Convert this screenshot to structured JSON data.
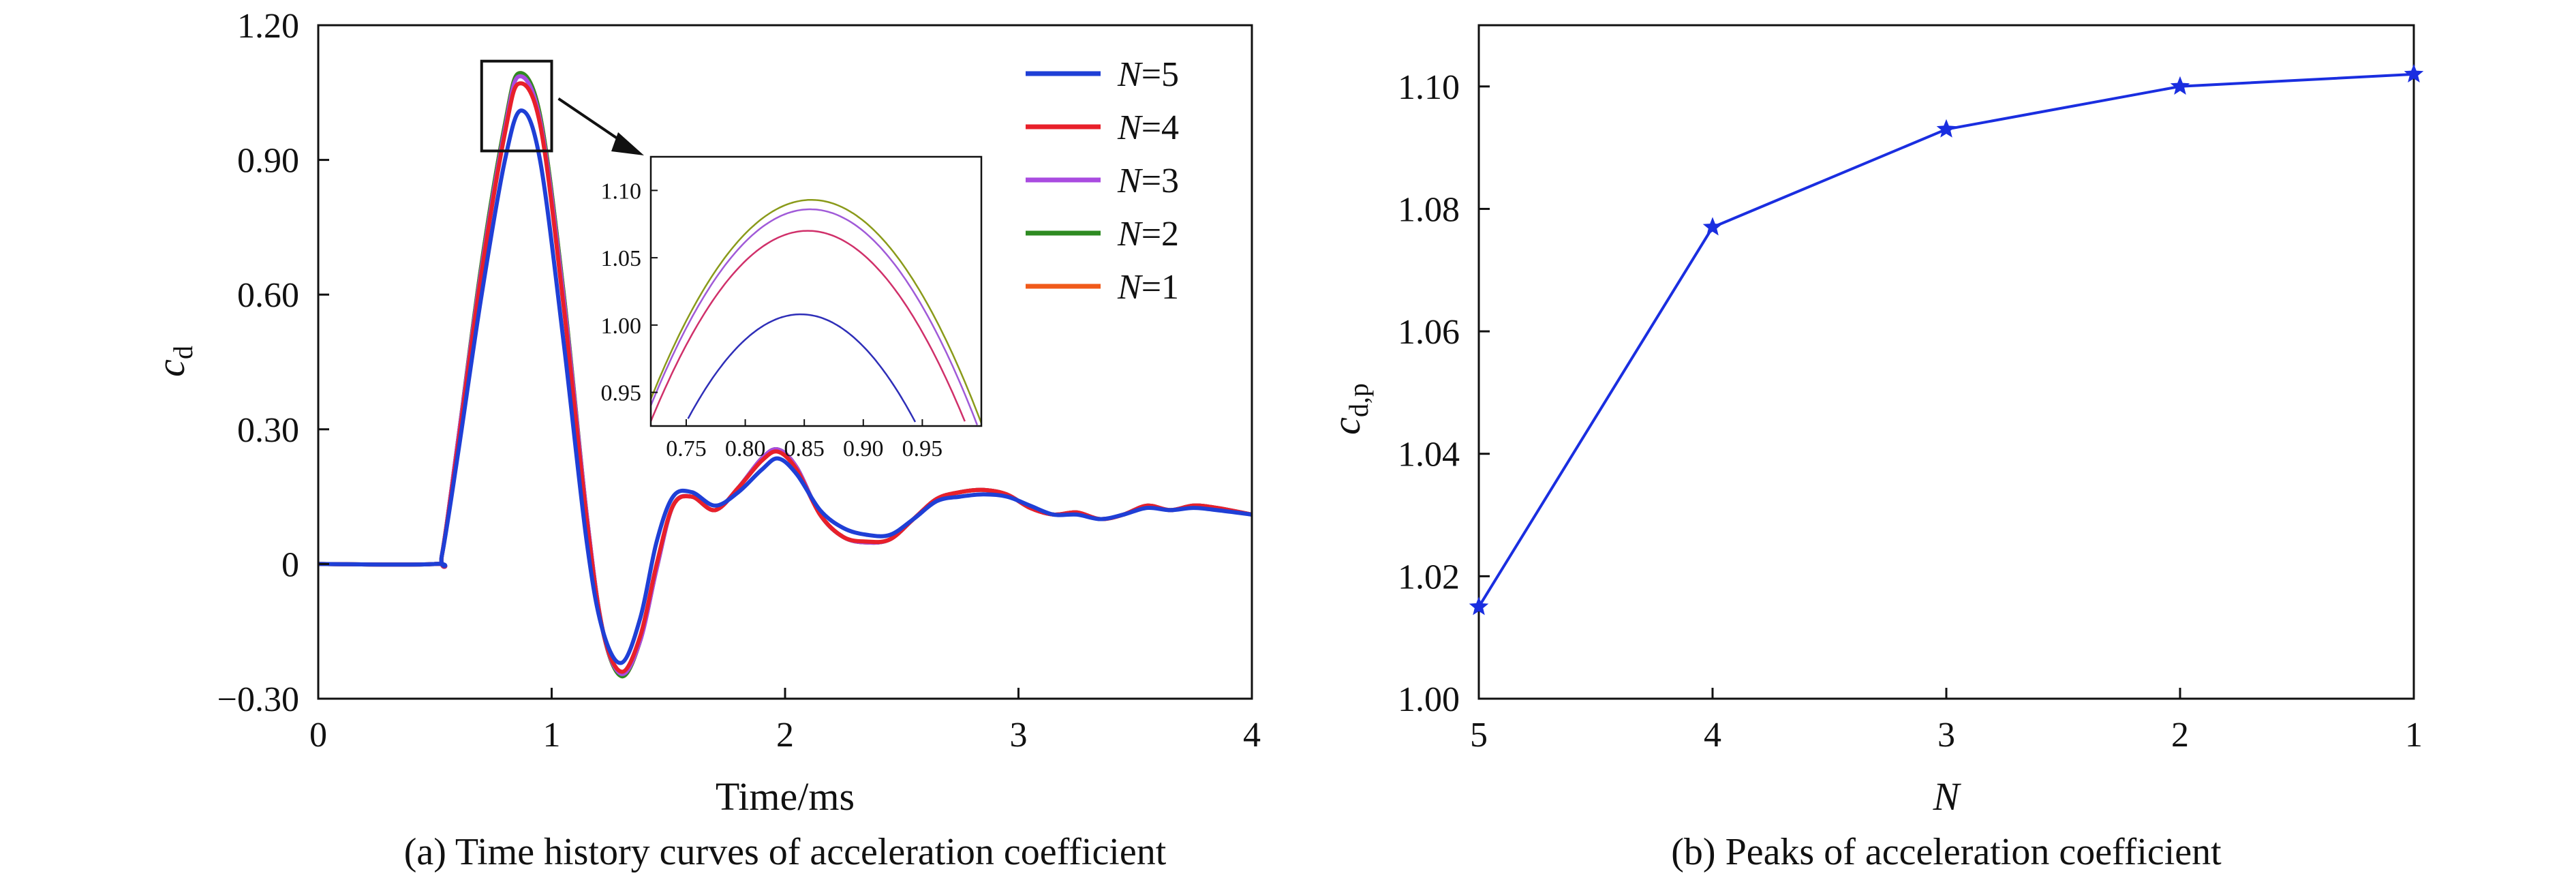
{
  "chart_data": [
    {
      "type": "line",
      "caption": "(a) Time history curves of acceleration coefficient",
      "xlabel": "Time/ms",
      "ylabel_main": "c",
      "ylabel_sub": "d",
      "xlim": [
        0,
        4
      ],
      "ylim": [
        -0.3,
        1.2
      ],
      "x_ticks": [
        0,
        1,
        2,
        3,
        4
      ],
      "x_tick_labels": [
        "0",
        "1",
        "2",
        "3",
        "4"
      ],
      "y_ticks": [
        -0.3,
        0,
        0.3,
        0.6,
        0.9,
        1.2
      ],
      "y_tick_labels": [
        "−0.30",
        "0",
        "0.30",
        "0.60",
        "0.90",
        "1.20"
      ],
      "grid": false,
      "legend_position": "top-right",
      "legend": [
        {
          "var": "N",
          "value": "=5"
        },
        {
          "var": "N",
          "value": "=4"
        },
        {
          "var": "N",
          "value": "=3"
        },
        {
          "var": "N",
          "value": "=2"
        },
        {
          "var": "N",
          "value": "=1"
        }
      ],
      "series": [
        {
          "color": "#1f3fd6",
          "peak": 1.01,
          "x": [
            0,
            0.5,
            0.53,
            0.6,
            0.7,
            0.8,
            0.87,
            0.95,
            1.05,
            1.15,
            1.22,
            1.3,
            1.38,
            1.45,
            1.52,
            1.6,
            1.7,
            1.8,
            1.9,
            1.97,
            2.05,
            2.15,
            2.25,
            2.35,
            2.45,
            2.55,
            2.65,
            2.75,
            2.85,
            2.95,
            3.05,
            3.15,
            3.25,
            3.35,
            3.45,
            3.55,
            3.65,
            3.75,
            3.85,
            4.0
          ],
          "y": [
            0,
            0,
            0.02,
            0.25,
            0.6,
            0.9,
            1.01,
            0.9,
            0.5,
            0.05,
            -0.15,
            -0.22,
            -0.12,
            0.05,
            0.15,
            0.16,
            0.13,
            0.16,
            0.21,
            0.235,
            0.2,
            0.12,
            0.08,
            0.065,
            0.065,
            0.1,
            0.14,
            0.15,
            0.155,
            0.15,
            0.13,
            0.11,
            0.11,
            0.1,
            0.11,
            0.125,
            0.12,
            0.125,
            0.12,
            0.11
          ]
        },
        {
          "color": "#e8202a",
          "peak": 1.07,
          "x": [
            0,
            0.5,
            0.53,
            0.6,
            0.7,
            0.8,
            0.86,
            0.95,
            1.05,
            1.15,
            1.22,
            1.3,
            1.38,
            1.45,
            1.52,
            1.6,
            1.7,
            1.8,
            1.9,
            1.97,
            2.05,
            2.15,
            2.25,
            2.35,
            2.45,
            2.55,
            2.65,
            2.75,
            2.85,
            2.95,
            3.05,
            3.15,
            3.25,
            3.35,
            3.45,
            3.55,
            3.65,
            3.75,
            3.85,
            4.0
          ],
          "y": [
            0,
            0,
            0.02,
            0.27,
            0.65,
            0.96,
            1.07,
            0.98,
            0.58,
            0.1,
            -0.15,
            -0.24,
            -0.16,
            0.0,
            0.13,
            0.15,
            0.12,
            0.17,
            0.23,
            0.25,
            0.21,
            0.11,
            0.06,
            0.05,
            0.055,
            0.1,
            0.145,
            0.16,
            0.165,
            0.155,
            0.125,
            0.11,
            0.115,
            0.1,
            0.11,
            0.13,
            0.12,
            0.13,
            0.125,
            0.11
          ]
        },
        {
          "color": "#a94be0",
          "peak": 1.086,
          "x": [
            0,
            0.5,
            0.53,
            0.6,
            0.7,
            0.8,
            0.86,
            0.95,
            1.05,
            1.15,
            1.22,
            1.3,
            1.38,
            1.45,
            1.52,
            1.6,
            1.7,
            1.8,
            1.9,
            1.97,
            2.05,
            2.15,
            2.25,
            2.35,
            2.45,
            2.55,
            2.65,
            2.75,
            2.85,
            2.95,
            3.05,
            3.15,
            3.25,
            3.35,
            3.45,
            3.55,
            3.65,
            3.75,
            3.85,
            4.0
          ],
          "y": [
            0,
            0,
            0.02,
            0.28,
            0.66,
            0.97,
            1.086,
            0.99,
            0.6,
            0.11,
            -0.15,
            -0.245,
            -0.17,
            -0.01,
            0.13,
            0.15,
            0.12,
            0.17,
            0.235,
            0.255,
            0.215,
            0.11,
            0.06,
            0.048,
            0.055,
            0.1,
            0.145,
            0.16,
            0.165,
            0.155,
            0.125,
            0.11,
            0.115,
            0.1,
            0.11,
            0.13,
            0.12,
            0.13,
            0.125,
            0.11
          ]
        },
        {
          "color": "#2e8b22",
          "peak": 1.093,
          "x": [
            0,
            0.5,
            0.53,
            0.6,
            0.7,
            0.8,
            0.86,
            0.95,
            1.05,
            1.15,
            1.22,
            1.3,
            1.38,
            1.45,
            1.52,
            1.6,
            1.7,
            1.8,
            1.9,
            1.97,
            2.05,
            2.15,
            2.25,
            2.35,
            2.45,
            2.55,
            2.65,
            2.75,
            2.85,
            2.95,
            3.05,
            3.15,
            3.25,
            3.35,
            3.45,
            3.55,
            3.65,
            3.75,
            3.85,
            4.0
          ],
          "y": [
            0,
            0,
            0.02,
            0.28,
            0.67,
            0.98,
            1.093,
            1.0,
            0.61,
            0.11,
            -0.15,
            -0.25,
            -0.17,
            -0.01,
            0.13,
            0.15,
            0.12,
            0.17,
            0.235,
            0.255,
            0.215,
            0.11,
            0.06,
            0.048,
            0.055,
            0.1,
            0.145,
            0.16,
            0.165,
            0.155,
            0.125,
            0.11,
            0.115,
            0.1,
            0.11,
            0.13,
            0.12,
            0.13,
            0.125,
            0.11
          ]
        },
        {
          "color": "#f05a1a",
          "peak": 1.093,
          "x": [
            0,
            0.5,
            0.53,
            0.6,
            0.7,
            0.8,
            0.86,
            0.95,
            1.05,
            1.15,
            1.22,
            1.3,
            1.38,
            1.45,
            1.52,
            1.6,
            1.7,
            1.8,
            1.9,
            1.97,
            2.05,
            2.15,
            2.25,
            2.35,
            2.45,
            2.55,
            2.65,
            2.75,
            2.85,
            2.95,
            3.05,
            3.15,
            3.25,
            3.35,
            3.45,
            3.55,
            3.65,
            3.75,
            3.85,
            4.0
          ],
          "y": [
            0,
            0,
            0.02,
            0.28,
            0.67,
            0.98,
            1.093,
            1.0,
            0.61,
            0.11,
            -0.15,
            -0.25,
            -0.17,
            -0.01,
            0.13,
            0.15,
            0.12,
            0.17,
            0.235,
            0.255,
            0.215,
            0.11,
            0.06,
            0.048,
            0.055,
            0.1,
            0.145,
            0.16,
            0.165,
            0.155,
            0.125,
            0.11,
            0.115,
            0.1,
            0.11,
            0.13,
            0.12,
            0.13,
            0.125,
            0.11
          ]
        }
      ],
      "inset": {
        "xlim": [
          0.72,
          1.0
        ],
        "ylim": [
          0.925,
          1.125
        ],
        "x_ticks": [
          0.75,
          0.8,
          0.85,
          0.9,
          0.95
        ],
        "x_tick_labels": [
          "0.75",
          "0.80",
          "0.85",
          "0.90",
          "0.95"
        ],
        "y_ticks": [
          0.95,
          1.0,
          1.05,
          1.1
        ],
        "y_tick_labels": [
          "0.95",
          "1.00",
          "1.05",
          "1.10"
        ],
        "zoom_box_x": [
          0.7,
          1.0
        ],
        "zoom_box_y": [
          0.92,
          1.12
        ],
        "curves": [
          {
            "color": "#2e2eb8",
            "peak": 1.008,
            "center": 0.847,
            "curvature": 8.5
          },
          {
            "color": "#d0306a",
            "peak": 1.07,
            "center": 0.853,
            "curvature": 8.0
          },
          {
            "color": "#a05ad8",
            "peak": 1.086,
            "center": 0.855,
            "curvature": 8.0
          },
          {
            "color": "#8a9a1a",
            "peak": 1.093,
            "center": 0.856,
            "curvature": 8.0
          }
        ]
      }
    },
    {
      "type": "line",
      "caption": "(b) Peaks of acceleration coefficient",
      "xlabel": "N",
      "ylabel_main": "c",
      "ylabel_sub": "d,p",
      "categories": [
        "5",
        "4",
        "3",
        "2",
        "1"
      ],
      "values": [
        1.015,
        1.077,
        1.093,
        1.1,
        1.102
      ],
      "ylim": [
        1.0,
        1.11
      ],
      "y_ticks": [
        1.0,
        1.02,
        1.04,
        1.06,
        1.08,
        1.1
      ],
      "y_tick_labels": [
        "1.00",
        "1.02",
        "1.04",
        "1.06",
        "1.08",
        "1.10"
      ],
      "line_color": "#1a2ee0",
      "marker": "star",
      "grid": false
    }
  ]
}
